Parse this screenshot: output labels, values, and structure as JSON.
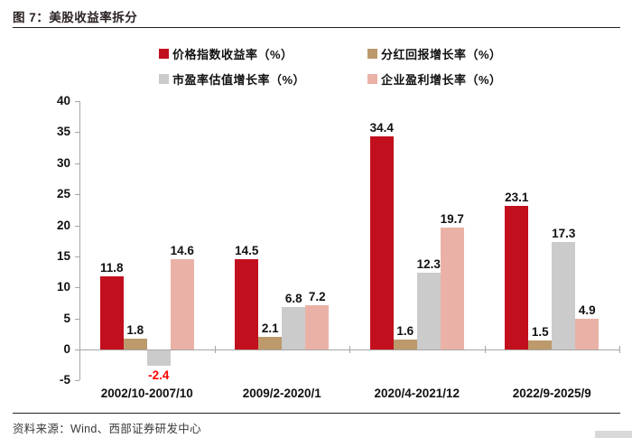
{
  "figure_title": "图 7：美股收益率拆分",
  "source_note": "资料来源：Wind、西部证券研发中心",
  "chart_data": {
    "type": "bar",
    "title": "美股收益率拆分",
    "categories": [
      "2002/10-2007/10",
      "2009/2-2020/1",
      "2020/4-2021/12",
      "2022/9-2025/9"
    ],
    "series": [
      {
        "name": "价格指数收益率（%）",
        "color": "#C20F1E",
        "values": [
          11.8,
          14.5,
          34.4,
          23.1
        ]
      },
      {
        "name": "分红回报增长率（%）",
        "color": "#BC9A6C",
        "values": [
          1.8,
          2.1,
          1.6,
          1.5
        ]
      },
      {
        "name": "市盈率估值增长率（%）",
        "color": "#CBCBCB",
        "values": [
          -2.4,
          6.8,
          12.3,
          17.3
        ]
      },
      {
        "name": "企业盈利增长率（%）",
        "color": "#EAB2A6",
        "values": [
          14.6,
          7.2,
          19.7,
          4.9
        ]
      }
    ],
    "xlabel": "",
    "ylabel": "",
    "ylim": [
      -5,
      40
    ],
    "ytick_step": 5,
    "grid": false,
    "legend_position": "top",
    "value_labels": true,
    "negative_label_color": "#FF0000",
    "positive_label_color": "#111111",
    "axis_color": "#A6A6A6"
  }
}
